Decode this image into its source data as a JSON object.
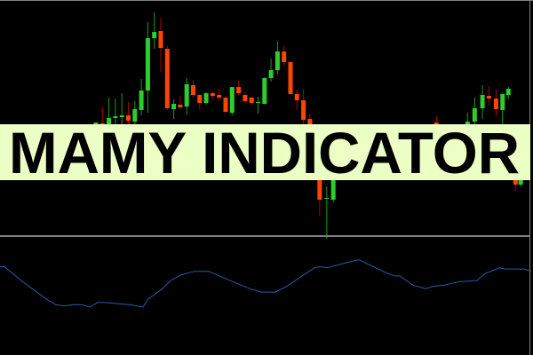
{
  "banner": {
    "title": "MAMY INDICATOR",
    "background": "#ecffc4",
    "text_color": "#000000"
  },
  "colors": {
    "background": "#000000",
    "bull": "#2ecc2e",
    "bear": "#ff4400",
    "bull_wick": "#1a9a1a",
    "bear_wick": "#b00000",
    "indicator_line": "#1f5fa8",
    "separator": "#808080"
  },
  "chart_data": [
    {
      "type": "candlestick",
      "panel": "price",
      "grid": false,
      "candles": [
        {
          "i": 0,
          "o": 260,
          "h": 262,
          "l": 240,
          "c": 262
        },
        {
          "i": 1,
          "o": 261,
          "h": 279,
          "l": 240,
          "c": 245
        },
        {
          "i": 2,
          "o": 245,
          "h": 290,
          "l": 240,
          "c": 267
        },
        {
          "i": 3,
          "o": 267,
          "h": 289,
          "l": 255,
          "c": 269
        },
        {
          "i": 4,
          "o": 268,
          "h": 295,
          "l": 260,
          "c": 270
        },
        {
          "i": 5,
          "o": 270,
          "h": 285,
          "l": 258,
          "c": 264
        },
        {
          "i": 6,
          "o": 263,
          "h": 286,
          "l": 258,
          "c": 277
        },
        {
          "i": 7,
          "o": 276,
          "h": 311,
          "l": 270,
          "c": 298
        },
        {
          "i": 8,
          "o": 298,
          "h": 375,
          "l": 273,
          "c": 357
        },
        {
          "i": 9,
          "o": 357,
          "h": 386,
          "l": 345,
          "c": 364
        },
        {
          "i": 10,
          "o": 365,
          "h": 380,
          "l": 319,
          "c": 346
        },
        {
          "i": 11,
          "o": 345,
          "h": 348,
          "l": 276,
          "c": 278
        },
        {
          "i": 12,
          "o": 277,
          "h": 288,
          "l": 266,
          "c": 283
        },
        {
          "i": 13,
          "o": 282,
          "h": 292,
          "l": 278,
          "c": 279
        },
        {
          "i": 14,
          "o": 280,
          "h": 312,
          "l": 271,
          "c": 305
        },
        {
          "i": 15,
          "o": 304,
          "h": 310,
          "l": 290,
          "c": 293
        },
        {
          "i": 16,
          "o": 293,
          "h": 294,
          "l": 276,
          "c": 284
        },
        {
          "i": 17,
          "o": 284,
          "h": 296,
          "l": 282,
          "c": 295
        },
        {
          "i": 18,
          "o": 295,
          "h": 297,
          "l": 288,
          "c": 292
        },
        {
          "i": 19,
          "o": 293,
          "h": 300,
          "l": 288,
          "c": 290
        },
        {
          "i": 20,
          "o": 290,
          "h": 291,
          "l": 273,
          "c": 274
        },
        {
          "i": 21,
          "o": 273,
          "h": 302,
          "l": 270,
          "c": 302
        },
        {
          "i": 22,
          "o": 302,
          "h": 309,
          "l": 293,
          "c": 295
        },
        {
          "i": 23,
          "o": 293,
          "h": 296,
          "l": 284,
          "c": 286
        },
        {
          "i": 24,
          "o": 290,
          "h": 291,
          "l": 282,
          "c": 284
        },
        {
          "i": 25,
          "o": 285,
          "h": 291,
          "l": 272,
          "c": 285
        },
        {
          "i": 26,
          "o": 283,
          "h": 313,
          "l": 282,
          "c": 312
        },
        {
          "i": 27,
          "o": 312,
          "h": 334,
          "l": 308,
          "c": 321
        },
        {
          "i": 28,
          "o": 321,
          "h": 353,
          "l": 316,
          "c": 342
        },
        {
          "i": 29,
          "o": 342,
          "h": 348,
          "l": 326,
          "c": 330
        },
        {
          "i": 30,
          "o": 330,
          "h": 330,
          "l": 294,
          "c": 294
        },
        {
          "i": 31,
          "o": 294,
          "h": 299,
          "l": 276,
          "c": 287
        },
        {
          "i": 32,
          "o": 287,
          "h": 300,
          "l": 260,
          "c": 265
        },
        {
          "i": 33,
          "o": 266,
          "h": 272,
          "l": 230,
          "c": 235
        },
        {
          "i": 34.5,
          "o": 235,
          "h": 240,
          "l": 157,
          "c": 175
        },
        {
          "i": 35.6,
          "o": 176,
          "h": 190,
          "l": 131,
          "c": 177
        },
        {
          "i": 36.6,
          "o": 175,
          "h": 240,
          "l": 172,
          "c": 230
        },
        {
          "i": 52.5,
          "o": 262,
          "h": 269,
          "l": 240,
          "c": 250
        },
        {
          "i": 57.3,
          "o": 245,
          "h": 273,
          "l": 240,
          "c": 263
        },
        {
          "i": 58.4,
          "o": 263,
          "h": 290,
          "l": 255,
          "c": 278
        },
        {
          "i": 59.6,
          "o": 278,
          "h": 304,
          "l": 266,
          "c": 293
        },
        {
          "i": 60.6,
          "o": 292,
          "h": 303,
          "l": 281,
          "c": 289
        },
        {
          "i": 61.7,
          "o": 289,
          "h": 299,
          "l": 269,
          "c": 277
        },
        {
          "i": 62.7,
          "o": 276,
          "h": 295,
          "l": 260,
          "c": 294
        },
        {
          "i": 63.6,
          "o": 293,
          "h": 302,
          "l": 288,
          "c": 300
        },
        {
          "i": 64.7,
          "o": 200,
          "h": 202,
          "l": 185,
          "c": 192
        },
        {
          "i": 65.5,
          "o": 192,
          "h": 200,
          "l": 190,
          "c": 198
        }
      ]
    },
    {
      "type": "line",
      "panel": "indicator",
      "grid": false,
      "x": [
        0,
        5,
        27,
        54,
        63,
        73,
        81,
        92,
        101,
        110,
        117,
        133,
        146,
        161,
        167,
        183,
        192,
        204,
        219,
        235,
        250,
        256,
        265,
        281,
        294,
        310,
        325,
        338,
        354,
        360,
        369,
        377,
        388,
        404,
        423,
        437,
        444,
        450,
        465,
        479,
        488,
        500,
        517,
        537,
        546,
        562,
        569,
        590,
        598
      ],
      "y": [
        75,
        75,
        61,
        46,
        42,
        41,
        42,
        42,
        40,
        44,
        44,
        43,
        42,
        40,
        47,
        56,
        63,
        68,
        71,
        71,
        66,
        64,
        61,
        56,
        53,
        53,
        59,
        66,
        74,
        75,
        74,
        76,
        78,
        81,
        74,
        69,
        67,
        67,
        59,
        56,
        58,
        59,
        62,
        63,
        69,
        74,
        73,
        73,
        71
      ]
    }
  ]
}
